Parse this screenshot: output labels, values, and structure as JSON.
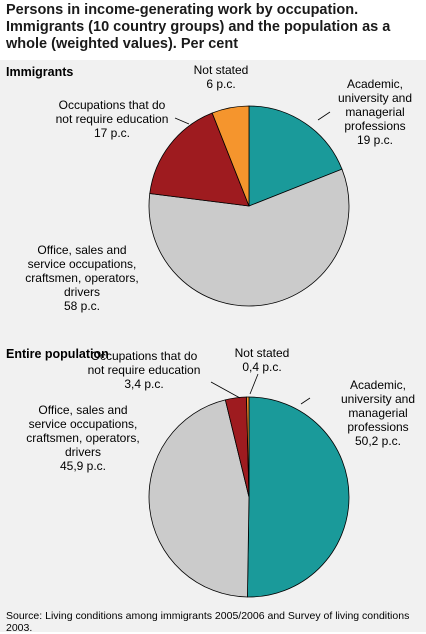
{
  "title": "Persons in income-generating work by occupation. Immigrants (10 country groups) and the population as a whole (weighted values). Per cent",
  "colors": {
    "academic": "#1a9a9a",
    "office": "#cbcbcb",
    "unskilled": "#9e1b1f",
    "not_stated": "#f5952d",
    "panel_bg": "#f1f1f1"
  },
  "chart_data": [
    {
      "type": "pie",
      "title": "Immigrants",
      "categories": [
        "Academic, university and managerial professions",
        "Office, sales and service occupations, craftsmen, operators, drivers",
        "Occupations that do not require education",
        "Not stated"
      ],
      "values": [
        19,
        58,
        17,
        6
      ],
      "labels": [
        [
          "Academic,",
          "university and",
          "managerial",
          "professions",
          "19 p.c."
        ],
        [
          "Office, sales and",
          "service occupations,",
          "craftsmen, operators,",
          "drivers",
          "58 p.c."
        ],
        [
          "Occupations that do",
          "not require education",
          "17 p.c."
        ],
        [
          "Not stated",
          "6 p.c."
        ]
      ]
    },
    {
      "type": "pie",
      "title": "Entire population",
      "categories": [
        "Academic, university and managerial professions",
        "Office, sales and service occupations, craftsmen, operators, drivers",
        "Occupations that do not require education",
        "Not stated"
      ],
      "values": [
        50.2,
        45.9,
        3.4,
        0.4
      ],
      "labels": [
        [
          "Academic,",
          "university and",
          "managerial",
          "professions",
          "50,2 p.c."
        ],
        [
          "Office, sales and",
          "service occupations,",
          "craftsmen, operators,",
          "drivers",
          "45,9 p.c."
        ],
        [
          "Occupations that do",
          "not require education",
          "3,4 p.c."
        ],
        [
          "Not stated",
          "0,4 p.c."
        ]
      ]
    }
  ],
  "source": "Source: Living conditions among immigrants 2005/2006 and Survey of living conditions 2003."
}
